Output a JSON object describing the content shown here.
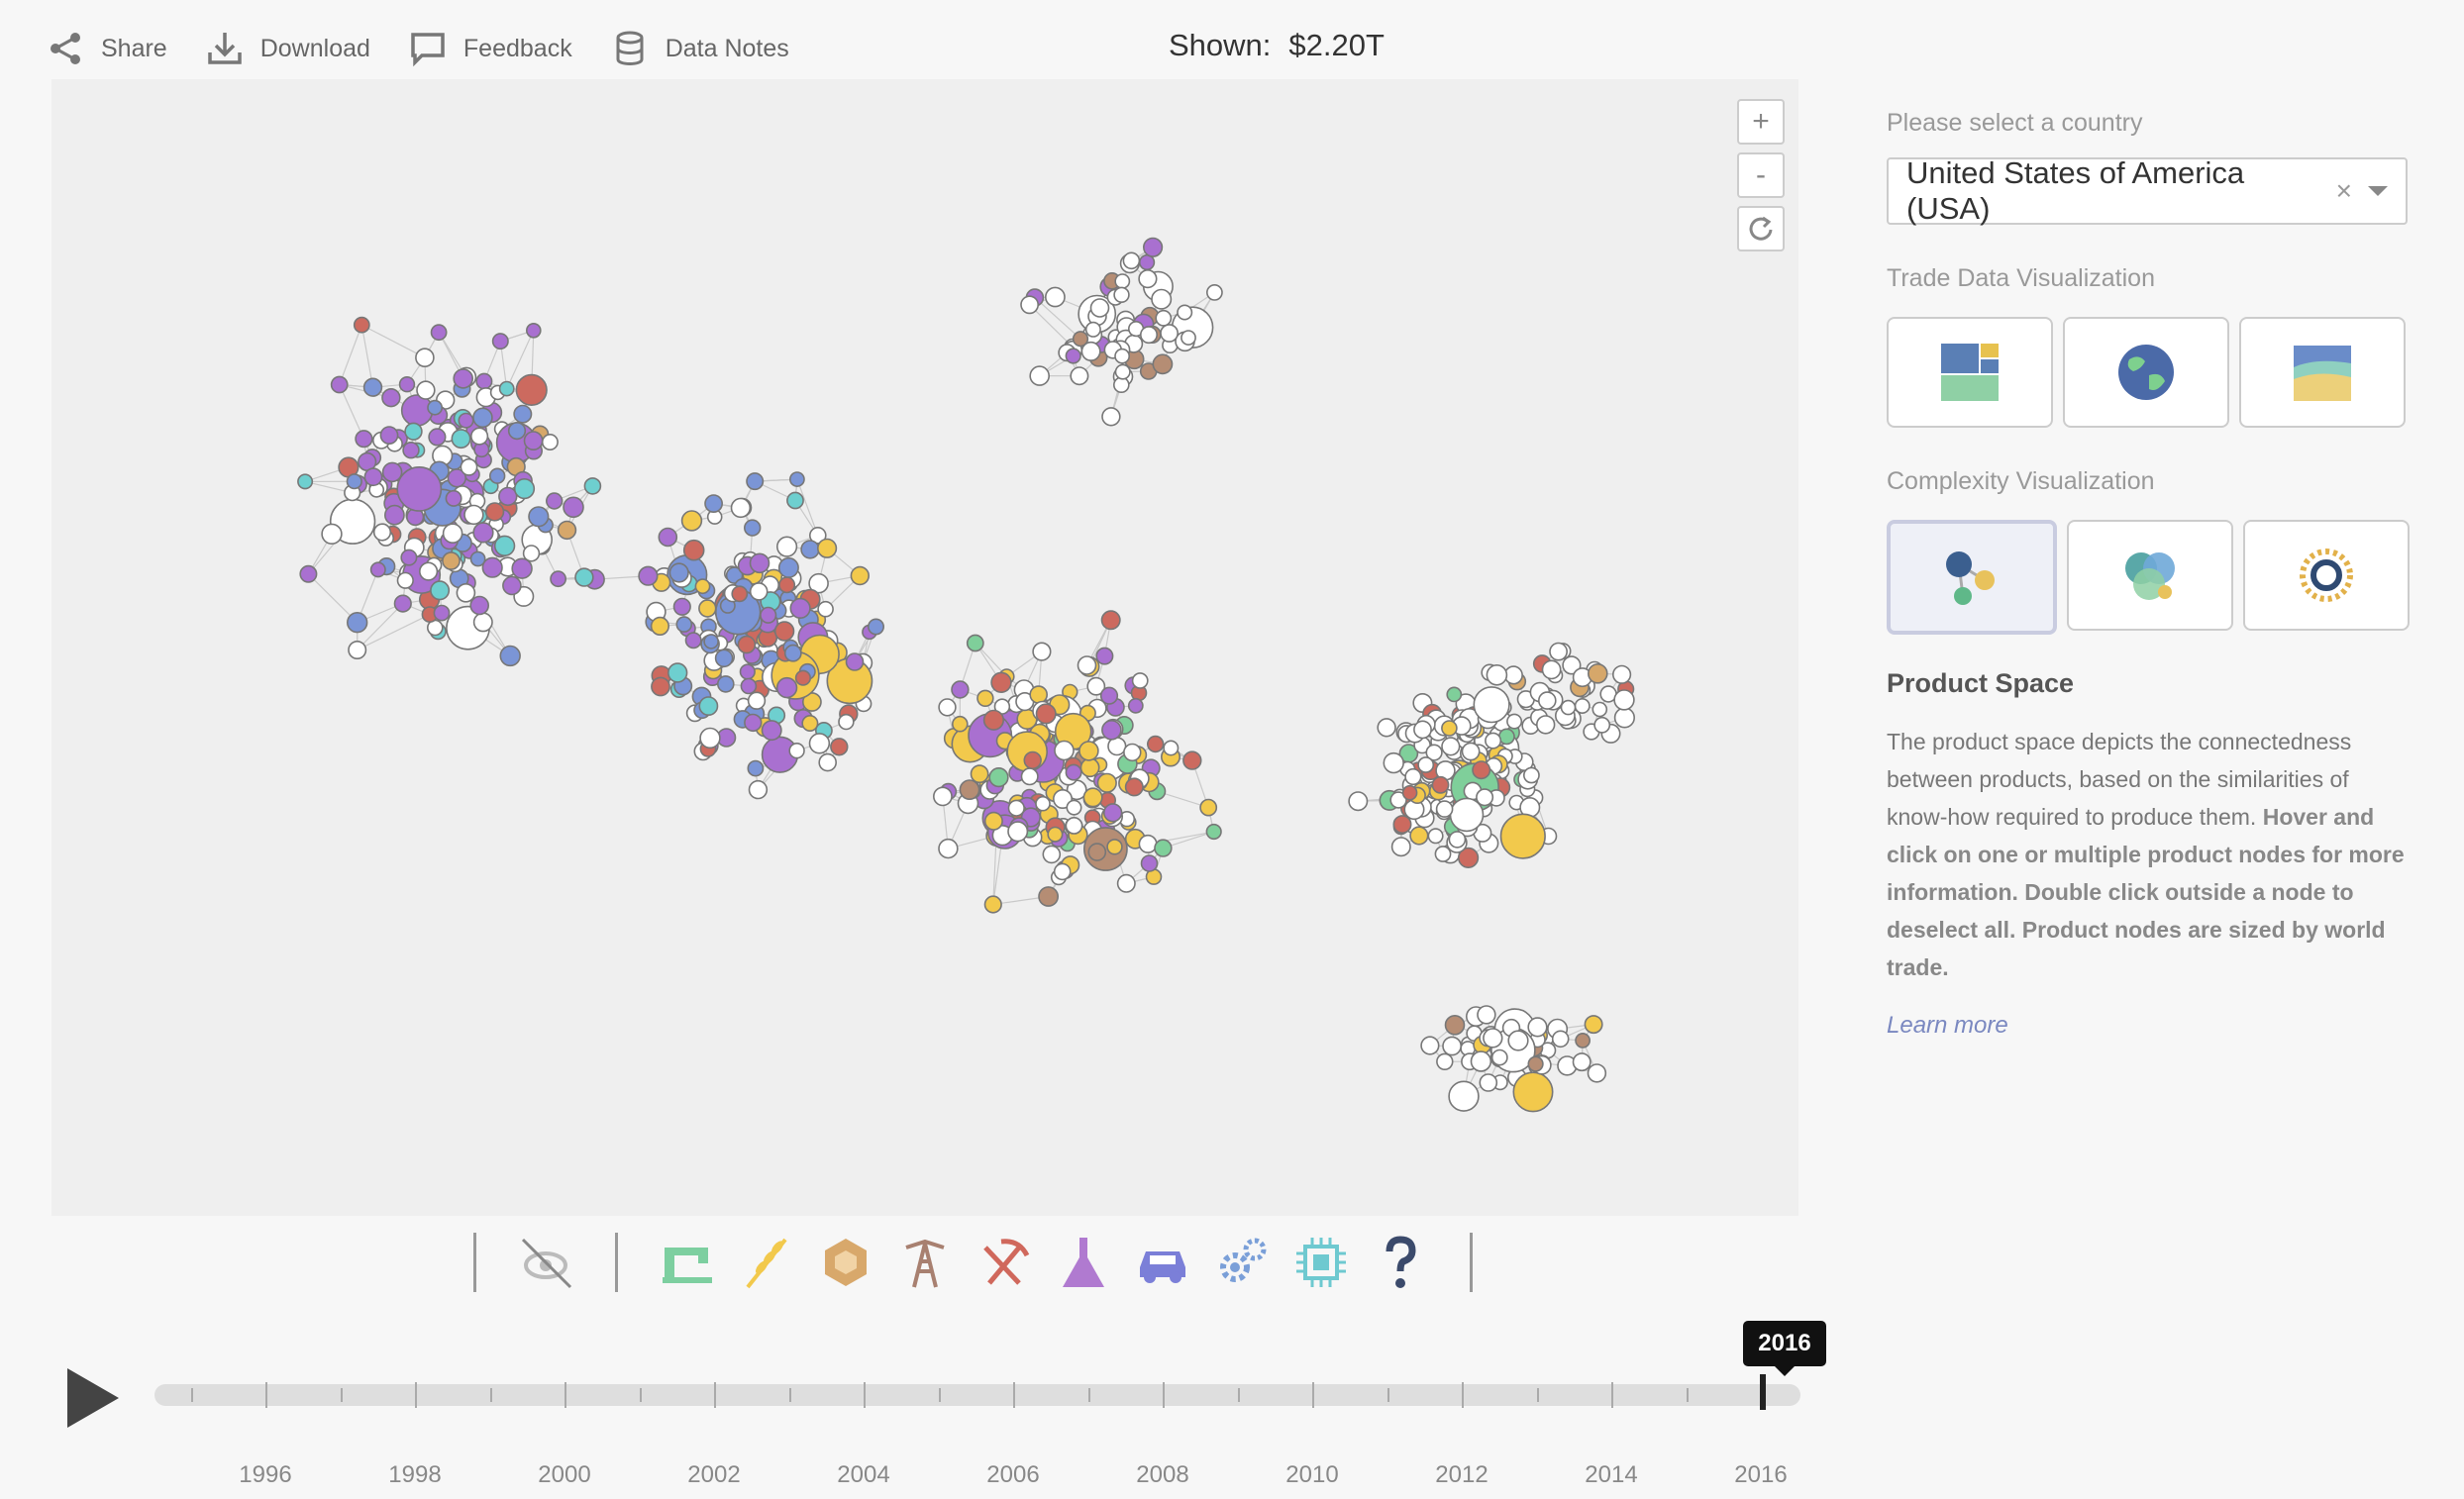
{
  "toolbar": {
    "share": "Share",
    "download": "Download",
    "feedback": "Feedback",
    "data_notes": "Data Notes"
  },
  "shown": {
    "label": "Shown:",
    "value": "$2.20T"
  },
  "zoom": {
    "in": "+",
    "out": "-"
  },
  "sidebar": {
    "country_label": "Please select a country",
    "country_value": "United States of America (USA)",
    "clear": "×",
    "trade_label": "Trade Data Visualization",
    "complexity_label": "Complexity Visualization",
    "product_space_title": "Product Space",
    "desc_plain": "The product space depicts the connectedness between products, based on the similarities of know-how required to produce them. ",
    "desc_bold": "Hover and click on one or multiple product nodes for more information. Double click outside a node to deselect all. Product nodes are sized by world trade.",
    "learn_more": "Learn more"
  },
  "timeline": {
    "selected_year": "2016",
    "years": [
      "1996",
      "1998",
      "2000",
      "2002",
      "2004",
      "2006",
      "2008",
      "2010",
      "2012",
      "2014",
      "2016"
    ]
  },
  "category_colors": [
    "#7dcfa0",
    "#f2c94c",
    "#d8a86b",
    "#a88070",
    "#d0685c",
    "#b07ad0",
    "#7b7fd8",
    "#7a9fd8",
    "#6ec9d0",
    "#3b4a6b"
  ],
  "node_palette": {
    "default": "#ffffff",
    "purple": "#a970d0",
    "blue": "#7b95d6",
    "yellow": "#f2c94c",
    "red": "#cc6a5f",
    "green": "#7fcf9a",
    "teal": "#6ecfcf",
    "brown": "#b58d74",
    "tan": "#d6a76a",
    "violet": "#7f6ed8"
  }
}
